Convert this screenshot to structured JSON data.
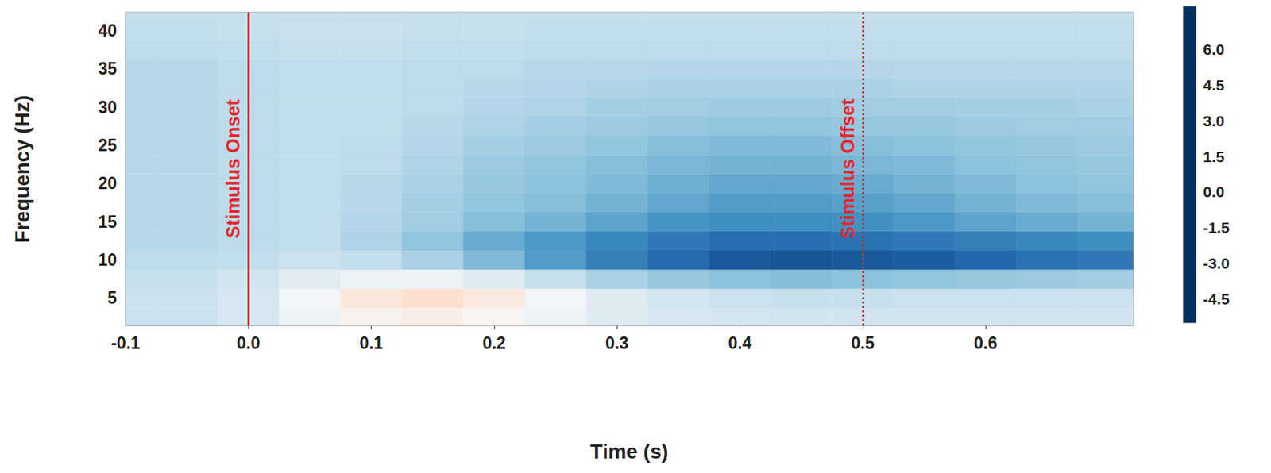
{
  "chart_data": {
    "type": "heatmap",
    "xlabel": "Time (s)",
    "ylabel": "Frequency (Hz)",
    "xlim": [
      -0.1,
      0.72
    ],
    "xticks": [
      -0.1,
      {
        "value": 0,
        "label": "0.0"
      },
      0.1,
      0.2,
      0.3,
      0.4,
      0.5,
      0.6
    ],
    "ylim": [
      1.4,
      42.4
    ],
    "yticks": [
      5,
      10,
      15,
      20,
      25,
      30,
      35,
      40
    ],
    "x": [
      -0.1,
      -0.05,
      0,
      0.05,
      0.1,
      0.15,
      0.2,
      0.25,
      0.3,
      0.35,
      0.4,
      0.45,
      0.5,
      0.55,
      0.6,
      0.65,
      0.7
    ],
    "y": [
      2.5,
      5,
      7.5,
      10,
      12.5,
      15,
      17.5,
      20,
      22.5,
      25,
      27.5,
      30,
      32.5,
      35,
      37.5,
      40,
      42.5
    ],
    "z": [
      [
        -0.3,
        -0.3,
        0.0,
        0.8,
        1.4,
        1.6,
        1.3,
        0.8,
        0.3,
        0.0,
        -0.1,
        -0.2,
        -0.2,
        -0.2,
        -0.2,
        -0.2,
        -0.2
      ],
      [
        -0.3,
        -0.3,
        0.0,
        1.0,
        1.9,
        2.2,
        1.8,
        1.0,
        0.3,
        -0.1,
        -0.3,
        -0.4,
        -0.4,
        -0.3,
        -0.3,
        -0.3,
        -0.3
      ],
      [
        -0.4,
        -0.4,
        -0.2,
        0.4,
        0.8,
        0.8,
        0.3,
        -0.4,
        -1.0,
        -1.4,
        -1.6,
        -1.7,
        -1.6,
        -1.5,
        -1.4,
        -1.3,
        -1.2
      ],
      [
        -0.6,
        -0.6,
        -0.5,
        -0.3,
        -0.5,
        -1.0,
        -1.8,
        -2.6,
        -3.4,
        -4.0,
        -4.5,
        -4.6,
        -4.5,
        -4.4,
        -4.1,
        -3.8,
        -3.6
      ],
      [
        -0.7,
        -0.7,
        -0.6,
        -0.5,
        -0.9,
        -1.5,
        -2.2,
        -2.7,
        -3.2,
        -3.6,
        -3.9,
        -3.9,
        -3.8,
        -3.6,
        -3.4,
        -3.2,
        -3.0
      ],
      [
        -0.7,
        -0.7,
        -0.6,
        -0.5,
        -0.8,
        -1.2,
        -1.7,
        -2.0,
        -2.4,
        -2.8,
        -3.0,
        -3.0,
        -2.9,
        -2.7,
        -2.4,
        -2.2,
        -2.0
      ],
      [
        -0.7,
        -0.7,
        -0.6,
        -0.5,
        -0.7,
        -1.1,
        -1.5,
        -1.7,
        -2.0,
        -2.3,
        -2.6,
        -2.6,
        -2.5,
        -2.3,
        -2.0,
        -1.8,
        -1.7
      ],
      [
        -0.7,
        -0.7,
        -0.6,
        -0.5,
        -0.7,
        -1.0,
        -1.4,
        -1.6,
        -1.8,
        -2.1,
        -2.3,
        -2.3,
        -2.2,
        -2.0,
        -1.8,
        -1.6,
        -1.5
      ],
      [
        -0.7,
        -0.7,
        -0.6,
        -0.5,
        -0.6,
        -0.9,
        -1.3,
        -1.5,
        -1.7,
        -1.9,
        -2.0,
        -2.0,
        -1.9,
        -1.8,
        -1.6,
        -1.5,
        -1.4
      ],
      [
        -0.7,
        -0.7,
        -0.6,
        -0.5,
        -0.6,
        -0.8,
        -1.1,
        -1.3,
        -1.5,
        -1.7,
        -1.8,
        -1.8,
        -1.7,
        -1.6,
        -1.5,
        -1.4,
        -1.3
      ],
      [
        -0.7,
        -0.7,
        -0.6,
        -0.5,
        -0.5,
        -0.7,
        -0.9,
        -1.1,
        -1.3,
        -1.4,
        -1.5,
        -1.5,
        -1.4,
        -1.4,
        -1.3,
        -1.2,
        -1.2
      ],
      [
        -0.7,
        -0.7,
        -0.6,
        -0.5,
        -0.5,
        -0.6,
        -0.8,
        -0.9,
        -1.1,
        -1.2,
        -1.3,
        -1.3,
        -1.2,
        -1.2,
        -1.1,
        -1.1,
        -1.0
      ],
      [
        -0.7,
        -0.7,
        -0.6,
        -0.5,
        -0.5,
        -0.6,
        -0.7,
        -0.8,
        -0.9,
        -1.0,
        -1.0,
        -1.0,
        -1.0,
        -0.9,
        -0.9,
        -0.9,
        -0.9
      ],
      [
        -0.7,
        -0.7,
        -0.6,
        -0.5,
        -0.5,
        -0.6,
        -0.6,
        -0.7,
        -0.7,
        -0.8,
        -0.8,
        -0.8,
        -0.8,
        -0.7,
        -0.7,
        -0.7,
        -0.7
      ],
      [
        -0.6,
        -0.6,
        -0.5,
        -0.4,
        -0.4,
        -0.5,
        -0.5,
        -0.6,
        -0.6,
        -0.6,
        -0.6,
        -0.6,
        -0.6,
        -0.6,
        -0.6,
        -0.6,
        -0.6
      ],
      [
        -0.5,
        -0.5,
        -0.4,
        -0.3,
        -0.3,
        -0.4,
        -0.4,
        -0.5,
        -0.5,
        -0.5,
        -0.5,
        -0.5,
        -0.5,
        -0.5,
        -0.5,
        -0.5,
        -0.5
      ],
      [
        -0.4,
        -0.4,
        -0.4,
        -0.4,
        -0.4,
        -0.4,
        -0.4,
        -0.4,
        -0.4,
        -0.4,
        -0.4,
        -0.4,
        -0.4,
        -0.4,
        -0.4,
        -0.4,
        -0.4
      ]
    ],
    "colorbar": {
      "range": [
        -5.5,
        7.8
      ],
      "ticks": [
        {
          "value": 6,
          "label": "6.0"
        },
        4.5,
        {
          "value": 3,
          "label": "3.0"
        },
        1.5,
        {
          "value": 0,
          "label": "0.0"
        },
        -1.5,
        {
          "value": -3,
          "label": "-3.0"
        },
        -4.5
      ]
    },
    "annotations": [
      {
        "x": 0,
        "text": "Stimulus Onset",
        "line_style": "solid"
      },
      {
        "x": 0.5,
        "text": "Stimulus Offset",
        "line_style": "dotted"
      }
    ]
  }
}
